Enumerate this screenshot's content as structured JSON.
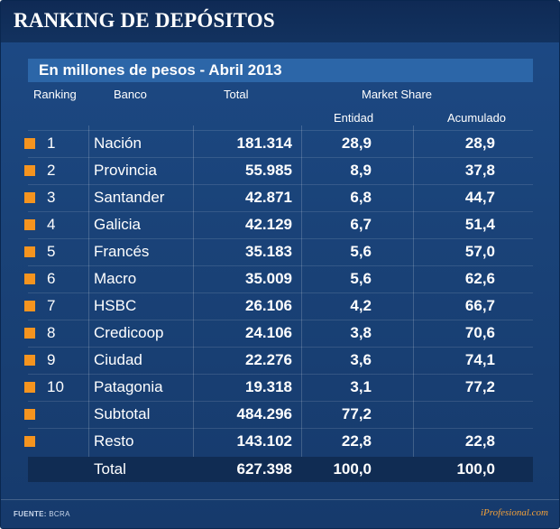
{
  "title": "RANKING DE DEPÓSITOS",
  "subtitle": "En millones de pesos - Abril 2013",
  "headers": {
    "ranking": "Ranking",
    "banco": "Banco",
    "total": "Total",
    "market_share": "Market Share",
    "entidad": "Entidad",
    "acumulado": "Acumulado"
  },
  "colors": {
    "marker": "#f5941f",
    "background": "#1a4379"
  },
  "chart_data": {
    "type": "table",
    "title": "RANKING DE DEPÓSITOS",
    "subtitle": "En millones de pesos - Abril 2013",
    "columns": [
      "Ranking",
      "Banco",
      "Total",
      "Entidad",
      "Acumulado"
    ],
    "rows": [
      {
        "rank": "1",
        "bank": "Nación",
        "total": "181.314",
        "entidad": "28,9",
        "acumulado": "28,9"
      },
      {
        "rank": "2",
        "bank": "Provincia",
        "total": "55.985",
        "entidad": "8,9",
        "acumulado": "37,8"
      },
      {
        "rank": "3",
        "bank": "Santander",
        "total": "42.871",
        "entidad": "6,8",
        "acumulado": "44,7"
      },
      {
        "rank": "4",
        "bank": "Galicia",
        "total": "42.129",
        "entidad": "6,7",
        "acumulado": "51,4"
      },
      {
        "rank": "5",
        "bank": "Francés",
        "total": "35.183",
        "entidad": "5,6",
        "acumulado": "57,0"
      },
      {
        "rank": "6",
        "bank": "Macro",
        "total": "35.009",
        "entidad": "5,6",
        "acumulado": "62,6"
      },
      {
        "rank": "7",
        "bank": "HSBC",
        "total": "26.106",
        "entidad": "4,2",
        "acumulado": "66,7"
      },
      {
        "rank": "8",
        "bank": "Credicoop",
        "total": "24.106",
        "entidad": "3,8",
        "acumulado": "70,6"
      },
      {
        "rank": "9",
        "bank": "Ciudad",
        "total": "22.276",
        "entidad": "3,6",
        "acumulado": "74,1"
      },
      {
        "rank": "10",
        "bank": "Patagonia",
        "total": "19.318",
        "entidad": "3,1",
        "acumulado": "77,2"
      },
      {
        "rank": "",
        "bank": "Subtotal",
        "total": "484.296",
        "entidad": "77,2",
        "acumulado": ""
      },
      {
        "rank": "",
        "bank": "Resto",
        "total": "143.102",
        "entidad": "22,8",
        "acumulado": "22,8"
      }
    ],
    "total_row": {
      "bank": "Total",
      "total": "627.398",
      "entidad": "100,0",
      "acumulado": "100,0"
    }
  },
  "footer": {
    "source_label": "FUENTE:",
    "source_value": "BCRA",
    "brand": "iProfesional.com"
  }
}
